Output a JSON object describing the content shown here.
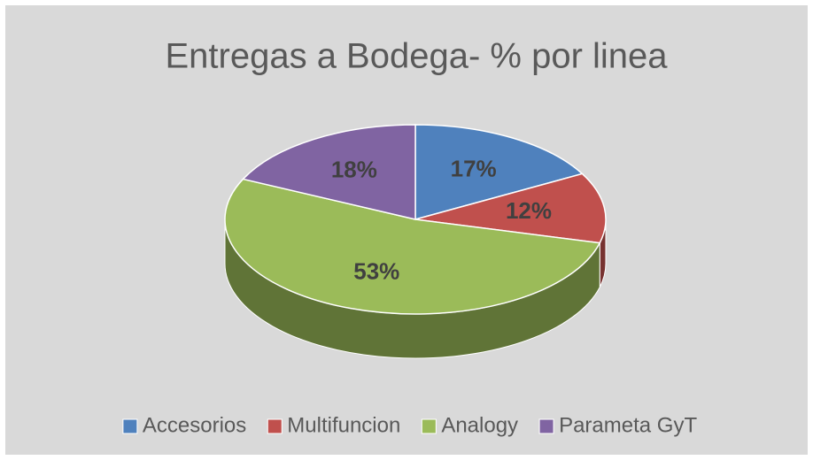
{
  "chart_data": {
    "type": "pie",
    "title": "Entregas a Bodega- % por linea",
    "categories": [
      "Accesorios",
      "Multifuncion",
      "Analogy",
      "Parameta GyT"
    ],
    "values": [
      17,
      12,
      53,
      18
    ],
    "value_labels": [
      "17%",
      "12%",
      "53%",
      "18%"
    ],
    "colors": [
      "#4f81bd",
      "#c0504d",
      "#9bbb59",
      "#8064a2"
    ],
    "legend": "bottom"
  }
}
